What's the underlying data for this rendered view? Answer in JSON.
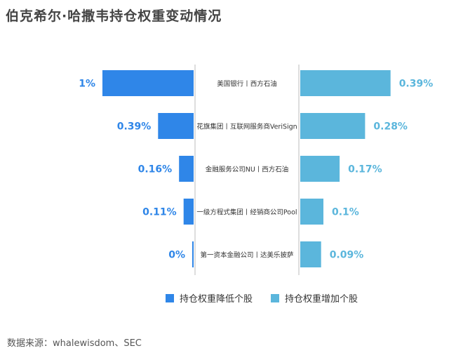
{
  "title": "伯克希尔·哈撒韦持仓权重变动情况",
  "source": "数据来源：whalewisdom、SEC",
  "chart_data": {
    "type": "bar",
    "layout": "diverging-horizontal",
    "colors": {
      "decrease": "#2f86e8",
      "increase": "#5bb6dc",
      "value_decrease": "#2f86e8",
      "value_increase": "#5bb6dc"
    },
    "rows": [
      {
        "label": "美国银行丨西方石油",
        "decrease": 1.0,
        "decrease_label": "1%",
        "increase": 0.39,
        "increase_label": "0.39%"
      },
      {
        "label": "花旗集团丨互联网服务商VeriSign",
        "decrease": 0.39,
        "decrease_label": "0.39%",
        "increase": 0.28,
        "increase_label": "0.28%"
      },
      {
        "label": "金融服务公司NU丨西方石油",
        "decrease": 0.16,
        "decrease_label": "0.16%",
        "increase": 0.17,
        "increase_label": "0.17%"
      },
      {
        "label": "一级方程式集团丨经销商公司Pool",
        "decrease": 0.11,
        "decrease_label": "0.11%",
        "increase": 0.1,
        "increase_label": "0.1%"
      },
      {
        "label": "第一资本金融公司丨达美乐披萨",
        "decrease": 0.0,
        "decrease_label": "0%",
        "increase": 0.09,
        "increase_label": "0.09%"
      }
    ],
    "legend": [
      {
        "name": "持仓权重降低个股",
        "key": "decrease"
      },
      {
        "name": "持仓权重增加个股",
        "key": "increase"
      }
    ],
    "legend_position": "bottom-center"
  }
}
